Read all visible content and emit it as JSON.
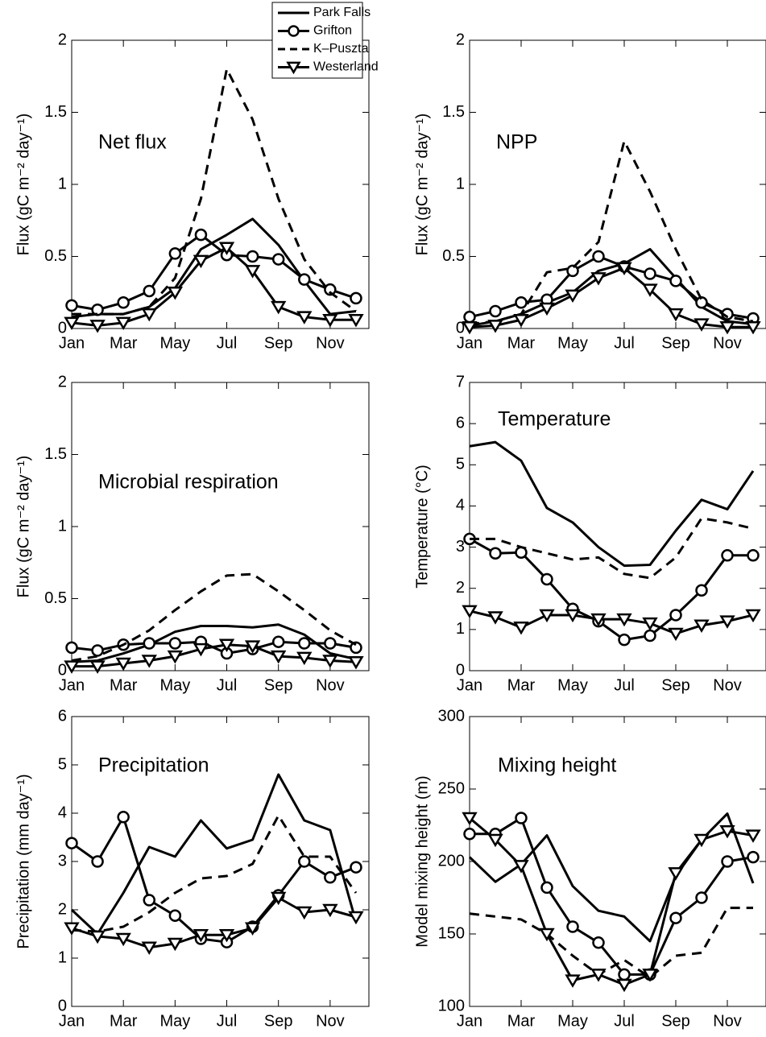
{
  "legend": {
    "entries": [
      {
        "name": "Park Falls",
        "color": "#000000",
        "marker": "none",
        "dash": false
      },
      {
        "name": "Grifton",
        "color": "#000000",
        "marker": "circle",
        "dash": false
      },
      {
        "name": "K–Puszta",
        "color": "#000000",
        "marker": "none",
        "dash": true
      },
      {
        "name": "Westerland",
        "color": "#000000",
        "marker": "triangle-down",
        "dash": false
      }
    ]
  },
  "chart_data": [
    {
      "type": "line",
      "annotation": "Net flux",
      "ylabel": "Flux (gC m⁻² day⁻¹)",
      "x": [
        1,
        2,
        3,
        4,
        5,
        6,
        7,
        8,
        9,
        10,
        11,
        12
      ],
      "xlim": [
        1,
        12.5
      ],
      "xticks": [
        {
          "value": 1,
          "label": "Jan"
        },
        {
          "value": 3,
          "label": "Mar"
        },
        {
          "value": 5,
          "label": "May"
        },
        {
          "value": 7,
          "label": "Jul"
        },
        {
          "value": 9,
          "label": "Sep"
        },
        {
          "value": 11,
          "label": "Nov"
        }
      ],
      "ylim": [
        0,
        2
      ],
      "yticks": [
        0,
        0.5,
        1,
        1.5,
        2
      ],
      "series": [
        {
          "values": [
            0.08,
            0.1,
            0.1,
            0.15,
            0.28,
            0.55,
            0.65,
            0.76,
            0.58,
            0.33,
            0.1,
            0.12
          ]
        },
        {
          "values": [
            0.16,
            0.13,
            0.18,
            0.26,
            0.52,
            0.65,
            0.51,
            0.5,
            0.48,
            0.34,
            0.27,
            0.21
          ]
        },
        {
          "values": [
            0.1,
            0.1,
            0.1,
            0.15,
            0.35,
            0.9,
            1.8,
            1.45,
            0.9,
            0.48,
            0.25,
            0.12
          ]
        },
        {
          "values": [
            0.04,
            0.02,
            0.04,
            0.1,
            0.25,
            0.47,
            0.56,
            0.4,
            0.15,
            0.08,
            0.06,
            0.06
          ]
        }
      ]
    },
    {
      "type": "line",
      "annotation": "NPP",
      "ylabel": "Flux (gC m⁻² day⁻¹)",
      "x": [
        1,
        2,
        3,
        4,
        5,
        6,
        7,
        8,
        9,
        10,
        11,
        12
      ],
      "xlim": [
        1,
        12.5
      ],
      "xticks": [
        {
          "value": 1,
          "label": "Jan"
        },
        {
          "value": 3,
          "label": "Mar"
        },
        {
          "value": 5,
          "label": "May"
        },
        {
          "value": 7,
          "label": "Jul"
        },
        {
          "value": 9,
          "label": "Sep"
        },
        {
          "value": 11,
          "label": "Nov"
        }
      ],
      "ylim": [
        0,
        2
      ],
      "yticks": [
        0,
        0.5,
        1,
        1.5,
        2
      ],
      "series": [
        {
          "values": [
            0.02,
            0.05,
            0.1,
            0.18,
            0.25,
            0.4,
            0.45,
            0.55,
            0.35,
            0.15,
            0.05,
            0.03
          ]
        },
        {
          "values": [
            0.08,
            0.12,
            0.18,
            0.2,
            0.4,
            0.5,
            0.43,
            0.38,
            0.33,
            0.18,
            0.1,
            0.07
          ]
        },
        {
          "values": [
            0.03,
            0.05,
            0.1,
            0.39,
            0.42,
            0.6,
            1.3,
            0.95,
            0.55,
            0.2,
            0.08,
            0.05
          ]
        },
        {
          "values": [
            0.01,
            0.02,
            0.06,
            0.14,
            0.23,
            0.35,
            0.42,
            0.27,
            0.1,
            0.03,
            0.01,
            0.01
          ]
        }
      ]
    },
    {
      "type": "line",
      "annotation": "Microbial respiration",
      "ylabel": "Flux (gC m⁻² day⁻¹)",
      "x": [
        1,
        2,
        3,
        4,
        5,
        6,
        7,
        8,
        9,
        10,
        11,
        12
      ],
      "xlim": [
        1,
        12.5
      ],
      "xticks": [
        {
          "value": 1,
          "label": "Jan"
        },
        {
          "value": 3,
          "label": "Mar"
        },
        {
          "value": 5,
          "label": "May"
        },
        {
          "value": 7,
          "label": "Jul"
        },
        {
          "value": 9,
          "label": "Sep"
        },
        {
          "value": 11,
          "label": "Nov"
        }
      ],
      "ylim": [
        0,
        2
      ],
      "yticks": [
        0,
        0.5,
        1,
        1.5,
        2
      ],
      "series": [
        {
          "values": [
            0.06,
            0.07,
            0.12,
            0.18,
            0.27,
            0.31,
            0.31,
            0.3,
            0.32,
            0.25,
            0.12,
            0.08
          ]
        },
        {
          "values": [
            0.16,
            0.14,
            0.18,
            0.19,
            0.19,
            0.2,
            0.12,
            0.15,
            0.2,
            0.19,
            0.19,
            0.16
          ]
        },
        {
          "values": [
            0.07,
            0.1,
            0.18,
            0.28,
            0.42,
            0.55,
            0.66,
            0.67,
            0.55,
            0.42,
            0.28,
            0.18
          ]
        },
        {
          "values": [
            0.03,
            0.03,
            0.05,
            0.07,
            0.1,
            0.15,
            0.18,
            0.17,
            0.1,
            0.09,
            0.07,
            0.06
          ]
        }
      ]
    },
    {
      "type": "line",
      "annotation": "Temperature",
      "ylabel": "Temperature (°C)",
      "x": [
        1,
        2,
        3,
        4,
        5,
        6,
        7,
        8,
        9,
        10,
        11,
        12
      ],
      "xlim": [
        1,
        12.5
      ],
      "xticks": [
        {
          "value": 1,
          "label": "Jan"
        },
        {
          "value": 3,
          "label": "Mar"
        },
        {
          "value": 5,
          "label": "May"
        },
        {
          "value": 7,
          "label": "Jul"
        },
        {
          "value": 9,
          "label": "Sep"
        },
        {
          "value": 11,
          "label": "Nov"
        }
      ],
      "ylim": [
        0,
        7
      ],
      "yticks": [
        0,
        1,
        2,
        3,
        4,
        5,
        6,
        7
      ],
      "series": [
        {
          "values": [
            5.45,
            5.55,
            5.1,
            3.95,
            3.6,
            3.0,
            2.55,
            2.57,
            3.4,
            4.15,
            3.92,
            4.85
          ]
        },
        {
          "values": [
            3.2,
            2.85,
            2.87,
            2.22,
            1.5,
            1.2,
            0.75,
            0.85,
            1.35,
            1.95,
            2.8,
            2.8
          ]
        },
        {
          "values": [
            3.2,
            3.2,
            3.0,
            2.85,
            2.7,
            2.75,
            2.35,
            2.25,
            2.75,
            3.7,
            3.6,
            3.45
          ]
        },
        {
          "values": [
            1.45,
            1.3,
            1.05,
            1.35,
            1.35,
            1.25,
            1.25,
            1.15,
            0.9,
            1.1,
            1.2,
            1.35
          ]
        }
      ]
    },
    {
      "type": "line",
      "annotation": "Precipitation",
      "ylabel": "Precipitation (mm day⁻¹)",
      "x": [
        1,
        2,
        3,
        4,
        5,
        6,
        7,
        8,
        9,
        10,
        11,
        12
      ],
      "xlim": [
        1,
        12.5
      ],
      "xticks": [
        {
          "value": 1,
          "label": "Jan"
        },
        {
          "value": 3,
          "label": "Mar"
        },
        {
          "value": 5,
          "label": "May"
        },
        {
          "value": 7,
          "label": "Jul"
        },
        {
          "value": 9,
          "label": "Sep"
        },
        {
          "value": 11,
          "label": "Nov"
        }
      ],
      "ylim": [
        0,
        6
      ],
      "yticks": [
        0,
        1,
        2,
        3,
        4,
        5,
        6
      ],
      "series": [
        {
          "values": [
            2.0,
            1.5,
            2.35,
            3.3,
            3.1,
            3.85,
            3.27,
            3.45,
            4.8,
            3.85,
            3.65,
            1.75
          ]
        },
        {
          "values": [
            3.38,
            3.0,
            3.92,
            2.2,
            1.88,
            1.4,
            1.33,
            1.65,
            2.3,
            3.0,
            2.67,
            2.88
          ]
        },
        {
          "values": [
            1.58,
            1.55,
            1.65,
            1.95,
            2.35,
            2.65,
            2.7,
            2.95,
            3.95,
            3.1,
            3.1,
            2.35
          ]
        },
        {
          "values": [
            1.62,
            1.45,
            1.4,
            1.22,
            1.3,
            1.48,
            1.48,
            1.62,
            2.25,
            1.95,
            2.0,
            1.85
          ]
        }
      ]
    },
    {
      "type": "line",
      "annotation": "Mixing height",
      "ylabel": "Model mixing height (m)",
      "x": [
        1,
        2,
        3,
        4,
        5,
        6,
        7,
        8,
        9,
        10,
        11,
        12
      ],
      "xlim": [
        1,
        12.5
      ],
      "xticks": [
        {
          "value": 1,
          "label": "Jan"
        },
        {
          "value": 3,
          "label": "Mar"
        },
        {
          "value": 5,
          "label": "May"
        },
        {
          "value": 7,
          "label": "Jul"
        },
        {
          "value": 9,
          "label": "Sep"
        },
        {
          "value": 11,
          "label": "Nov"
        }
      ],
      "ylim": [
        100,
        300
      ],
      "yticks": [
        100,
        150,
        200,
        250,
        300
      ],
      "series": [
        {
          "values": [
            203,
            186,
            198,
            218,
            183,
            166,
            162,
            145,
            190,
            215,
            233,
            185
          ]
        },
        {
          "values": [
            219,
            219,
            230,
            182,
            155,
            144,
            122,
            122,
            161,
            175,
            200,
            203
          ]
        },
        {
          "values": [
            164,
            162,
            160,
            150,
            135,
            122,
            132,
            120,
            135,
            137,
            168,
            168
          ]
        },
        {
          "values": [
            230,
            215,
            197,
            150,
            118,
            122,
            115,
            122,
            192,
            215,
            221,
            218
          ]
        }
      ]
    }
  ]
}
